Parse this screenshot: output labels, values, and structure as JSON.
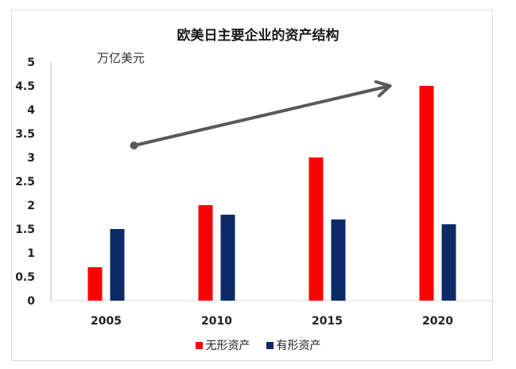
{
  "chart_data": {
    "type": "bar",
    "title": "欧美日主要企业的资产结构",
    "ylabel": "万亿美元",
    "xlabel": "",
    "categories": [
      "2005",
      "2010",
      "2015",
      "2020"
    ],
    "series": [
      {
        "name": "无形资产",
        "color": "#ff0000",
        "values": [
          0.7,
          2.0,
          3.0,
          4.5
        ]
      },
      {
        "name": "有形资产",
        "color": "#0b2a66",
        "values": [
          1.5,
          1.8,
          1.7,
          1.6
        ]
      }
    ],
    "ylim": [
      0,
      5
    ],
    "yticks": [
      "0",
      "0.5",
      "1",
      "1.5",
      "2",
      "2.5",
      "3",
      "3.5",
      "4",
      "4.5",
      "5"
    ],
    "grid": false,
    "legend_position": "bottom",
    "annotations": [
      {
        "kind": "arrow",
        "color": "#595959",
        "from": {
          "x": "2005",
          "y": 3.25
        },
        "to": {
          "x": "2020",
          "y": 4.5
        }
      }
    ]
  }
}
